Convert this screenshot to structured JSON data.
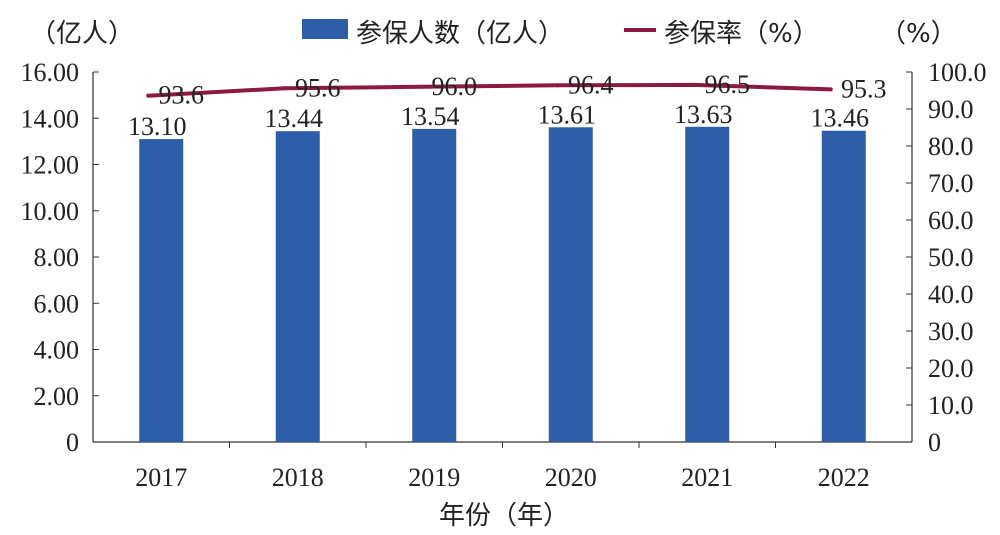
{
  "chart_data": {
    "type": "bar",
    "categories": [
      "2017",
      "2018",
      "2019",
      "2020",
      "2021",
      "2022"
    ],
    "series": [
      {
        "name": "参保人数（亿人）",
        "type": "bar",
        "axis": "left",
        "color": "#2f5ea8",
        "values": [
          13.1,
          13.44,
          13.54,
          13.61,
          13.63,
          13.46
        ],
        "labels": [
          "13.10",
          "13.44",
          "13.54",
          "13.61",
          "13.63",
          "13.46"
        ]
      },
      {
        "name": "参保率（%）",
        "type": "line",
        "axis": "right",
        "color": "#8b1a3e",
        "values": [
          93.6,
          95.6,
          96.0,
          96.4,
          96.5,
          95.3
        ],
        "labels": [
          "93.6",
          "95.6",
          "96.0",
          "96.4",
          "96.5",
          "95.3"
        ]
      }
    ],
    "xlabel": "年份（年）",
    "ylabel_left_unit": "（亿人）",
    "ylabel_right_unit": "（%）",
    "y_left": {
      "range": [
        0,
        16
      ],
      "ticks": [
        "0",
        "2.00",
        "4.00",
        "6.00",
        "8.00",
        "10.00",
        "12.00",
        "14.00",
        "16.00"
      ]
    },
    "y_right": {
      "range": [
        0,
        100
      ],
      "ticks": [
        "0",
        "10.0",
        "20.0",
        "30.0",
        "40.0",
        "50.0",
        "60.0",
        "70.0",
        "80.0",
        "90.0",
        "100.0"
      ]
    },
    "legend_position": "top",
    "grid": false
  }
}
